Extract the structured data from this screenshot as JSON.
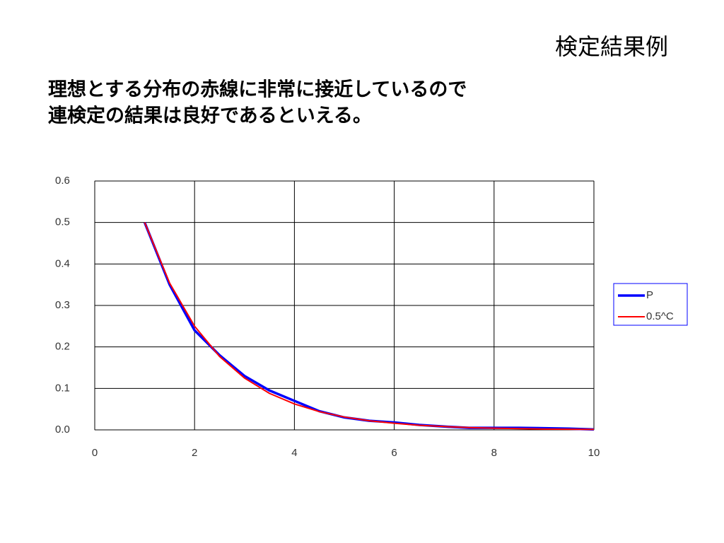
{
  "header": {
    "title": "検定結果例"
  },
  "body": {
    "lines": [
      "理想とする分布の赤線に非常に接近しているので",
      "連検定の結果は良好であるといえる。"
    ]
  },
  "chart_data": {
    "type": "line",
    "x": [
      1,
      1.5,
      2,
      2.5,
      3,
      3.5,
      4,
      4.5,
      5,
      5.5,
      6,
      6.5,
      7,
      7.5,
      8,
      8.5,
      9,
      9.5,
      10
    ],
    "series": [
      {
        "name": "P",
        "color": "#0000ff",
        "values": [
          0.5,
          0.35,
          0.24,
          0.18,
          0.13,
          0.095,
          0.07,
          0.045,
          0.03,
          0.022,
          0.018,
          0.012,
          0.008,
          0.005,
          0.005,
          0.005,
          0.004,
          0.003,
          0.001
        ]
      },
      {
        "name": "0.5^C",
        "color": "#ff0000",
        "values": [
          0.5,
          0.354,
          0.25,
          0.177,
          0.125,
          0.088,
          0.0625,
          0.044,
          0.031,
          0.022,
          0.016,
          0.011,
          0.008,
          0.0055,
          0.004,
          0.003,
          0.002,
          0.0014,
          0.001
        ]
      }
    ],
    "xlim": [
      0,
      10
    ],
    "xticks": [
      0,
      2,
      4,
      6,
      8,
      10
    ],
    "ylim": [
      0,
      0.6
    ],
    "yticks": [
      {
        "value": 0,
        "label": "0.0"
      },
      0.1,
      0.2,
      0.3,
      0.4,
      0.5,
      0.6
    ],
    "grid": true,
    "legend": "right"
  }
}
